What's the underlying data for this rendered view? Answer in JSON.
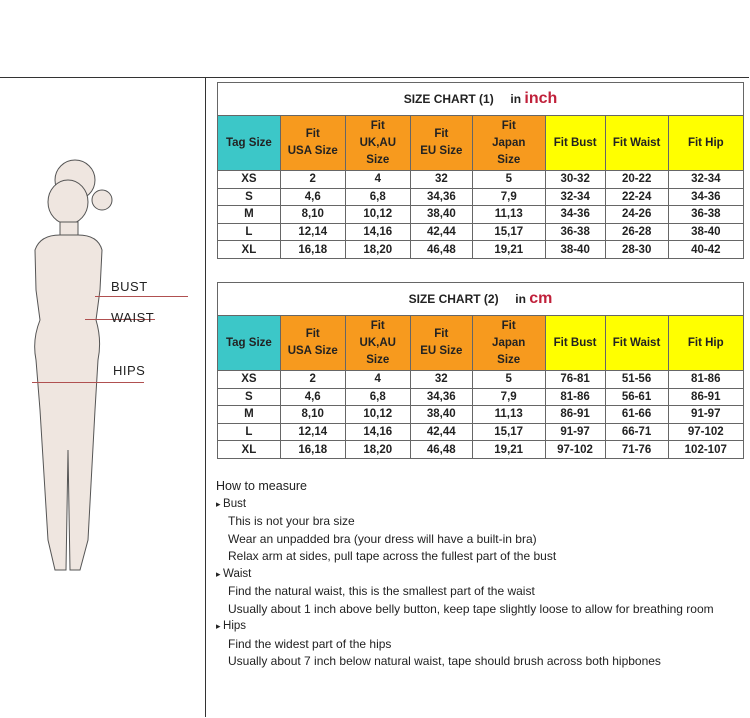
{
  "figure": {
    "labels": [
      "BUST",
      "WAIST",
      "HIPS"
    ]
  },
  "headers": [
    "Tag Size",
    "Fit\nUSA Size",
    "Fit\nUK,AU\nSize",
    "Fit\nEU Size",
    "Fit\nJapan\nSize",
    "Fit Bust",
    "Fit Waist",
    "Fit Hip"
  ],
  "charts": [
    {
      "title": "SIZE CHART (1)",
      "in": "in",
      "unit": "inch",
      "rows": [
        [
          "XS",
          "2",
          "4",
          "32",
          "5",
          "30-32",
          "20-22",
          "32-34"
        ],
        [
          "S",
          "4,6",
          "6,8",
          "34,36",
          "7,9",
          "32-34",
          "22-24",
          "34-36"
        ],
        [
          "M",
          "8,10",
          "10,12",
          "38,40",
          "11,13",
          "34-36",
          "24-26",
          "36-38"
        ],
        [
          "L",
          "12,14",
          "14,16",
          "42,44",
          "15,17",
          "36-38",
          "26-28",
          "38-40"
        ],
        [
          "XL",
          "16,18",
          "18,20",
          "46,48",
          "19,21",
          "38-40",
          "28-30",
          "40-42"
        ]
      ]
    },
    {
      "title": "SIZE CHART (2)",
      "in": "in",
      "unit": "cm",
      "rows": [
        [
          "XS",
          "2",
          "4",
          "32",
          "5",
          "76-81",
          "51-56",
          "81-86"
        ],
        [
          "S",
          "4,6",
          "6,8",
          "34,36",
          "7,9",
          "81-86",
          "56-61",
          "86-91"
        ],
        [
          "M",
          "8,10",
          "10,12",
          "38,40",
          "11,13",
          "86-91",
          "61-66",
          "91-97"
        ],
        [
          "L",
          "12,14",
          "14,16",
          "42,44",
          "15,17",
          "91-97",
          "66-71",
          "97-102"
        ],
        [
          "XL",
          "16,18",
          "18,20",
          "46,48",
          "19,21",
          "97-102",
          "71-76",
          "102-107"
        ]
      ]
    }
  ],
  "colors": {
    "teal": "#3cc7c8",
    "orange": "#f79a1e",
    "yellow": "#ffff00",
    "unit": "#c0203a"
  },
  "measure": {
    "heading": "How to measure",
    "sections": [
      {
        "name": "Bust",
        "lines": [
          "This is not your bra size",
          "Wear an unpadded bra (your dress will have a built-in bra)",
          "Relax arm at sides, pull tape across the fullest part of the bust"
        ]
      },
      {
        "name": "Waist",
        "lines": [
          "Find the natural waist, this is the smallest part of the waist",
          "Usually about 1 inch above belly button, keep tape slightly loose to allow for breathing room"
        ]
      },
      {
        "name": "Hips",
        "lines": [
          "Find the widest part of the hips",
          "Usually about 7 inch below natural waist, tape should brush across both hipbones"
        ]
      }
    ]
  }
}
